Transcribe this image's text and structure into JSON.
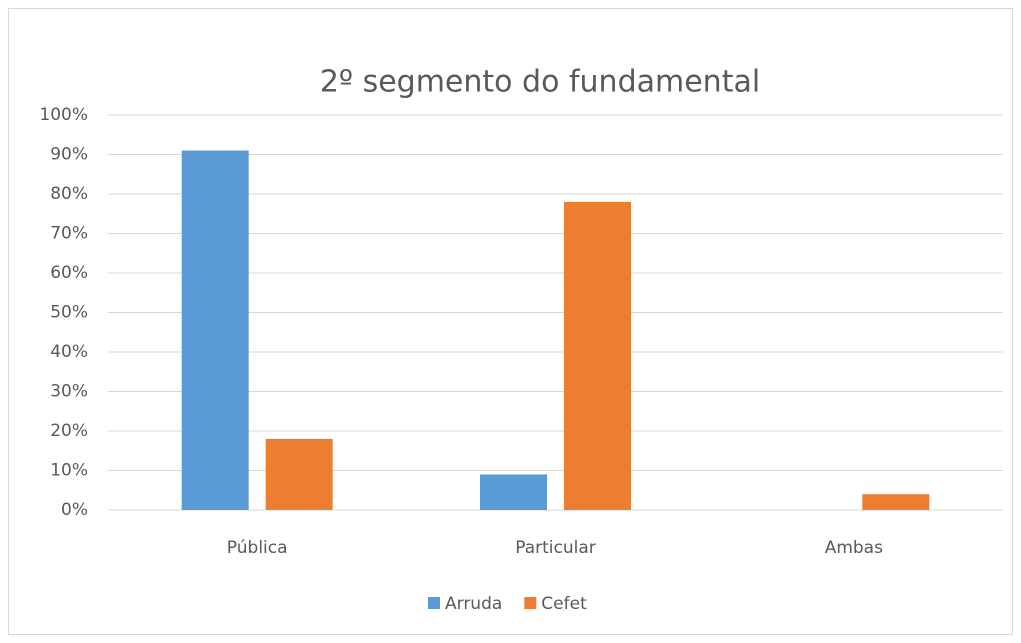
{
  "chart_data": {
    "type": "bar",
    "title": "2º segmento do fundamental",
    "categories": [
      "Pública",
      "Particular",
      "Ambas"
    ],
    "series": [
      {
        "name": "Arruda",
        "color": "#5b9bd5",
        "values": [
          91,
          9,
          0
        ]
      },
      {
        "name": "Cefet",
        "color": "#ed7d31",
        "values": [
          18,
          78,
          4
        ]
      }
    ],
    "ylim": [
      0,
      100
    ],
    "yticks": [
      {
        "value": 0,
        "label": "0%"
      },
      {
        "value": 10,
        "label": "10%"
      },
      {
        "value": 20,
        "label": "20%"
      },
      {
        "value": 30,
        "label": "30%"
      },
      {
        "value": 40,
        "label": "40%"
      },
      {
        "value": 50,
        "label": "50%"
      },
      {
        "value": 60,
        "label": "60%"
      },
      {
        "value": 70,
        "label": "70%"
      },
      {
        "value": 80,
        "label": "80%"
      },
      {
        "value": 90,
        "label": "90%"
      },
      {
        "value": 100,
        "label": "100%"
      }
    ],
    "grid": true,
    "legend": "bottom"
  }
}
